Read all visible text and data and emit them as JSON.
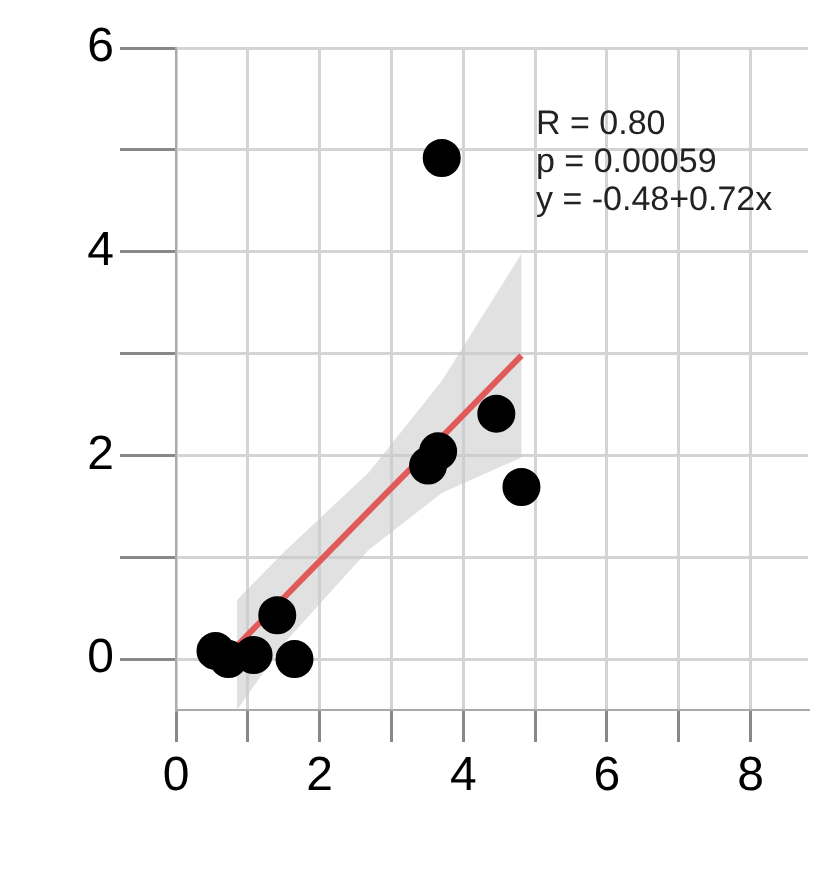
{
  "chart_data": {
    "type": "scatter",
    "xlim": [
      0,
      8.8
    ],
    "xticks": [
      0,
      {
        "value": 1,
        "label": null
      },
      2,
      {
        "value": 3,
        "label": null
      },
      4,
      {
        "value": 5,
        "label": null
      },
      6,
      {
        "value": 7,
        "label": null
      },
      8
    ],
    "ylim": [
      -0.5,
      6
    ],
    "yticks": [
      0,
      {
        "value": 1,
        "label": null
      },
      2,
      {
        "value": 3,
        "label": null
      },
      4,
      {
        "value": 5,
        "label": null
      },
      6
    ],
    "grid": true,
    "marker": "circle",
    "legend": false,
    "annotations": [
      "R = 0.80",
      "p = 0.00059",
      "y = -0.48+0.72x"
    ],
    "series": [
      {
        "type": "line",
        "marker": "none",
        "color": "#e05a5a",
        "x": [
          0.85,
          1.5,
          2.68,
          3.7,
          4.81
        ],
        "values": [
          0.13,
          0.6,
          1.45,
          2.18,
          2.98
        ],
        "lower": [
          -0.5,
          0.15,
          1.07,
          1.63,
          1.98
        ],
        "upper": [
          0.58,
          1.05,
          1.83,
          2.73,
          3.98
        ]
      },
      {
        "color": "#000000",
        "x": [
          0.55,
          0.73,
          1.08,
          1.41,
          1.65,
          3.51,
          3.65,
          4.46,
          4.81,
          3.7
        ],
        "values": [
          0.08,
          0,
          0.04,
          0.43,
          0,
          1.9,
          2.04,
          2.41,
          1.69,
          4.92
        ]
      }
    ]
  }
}
